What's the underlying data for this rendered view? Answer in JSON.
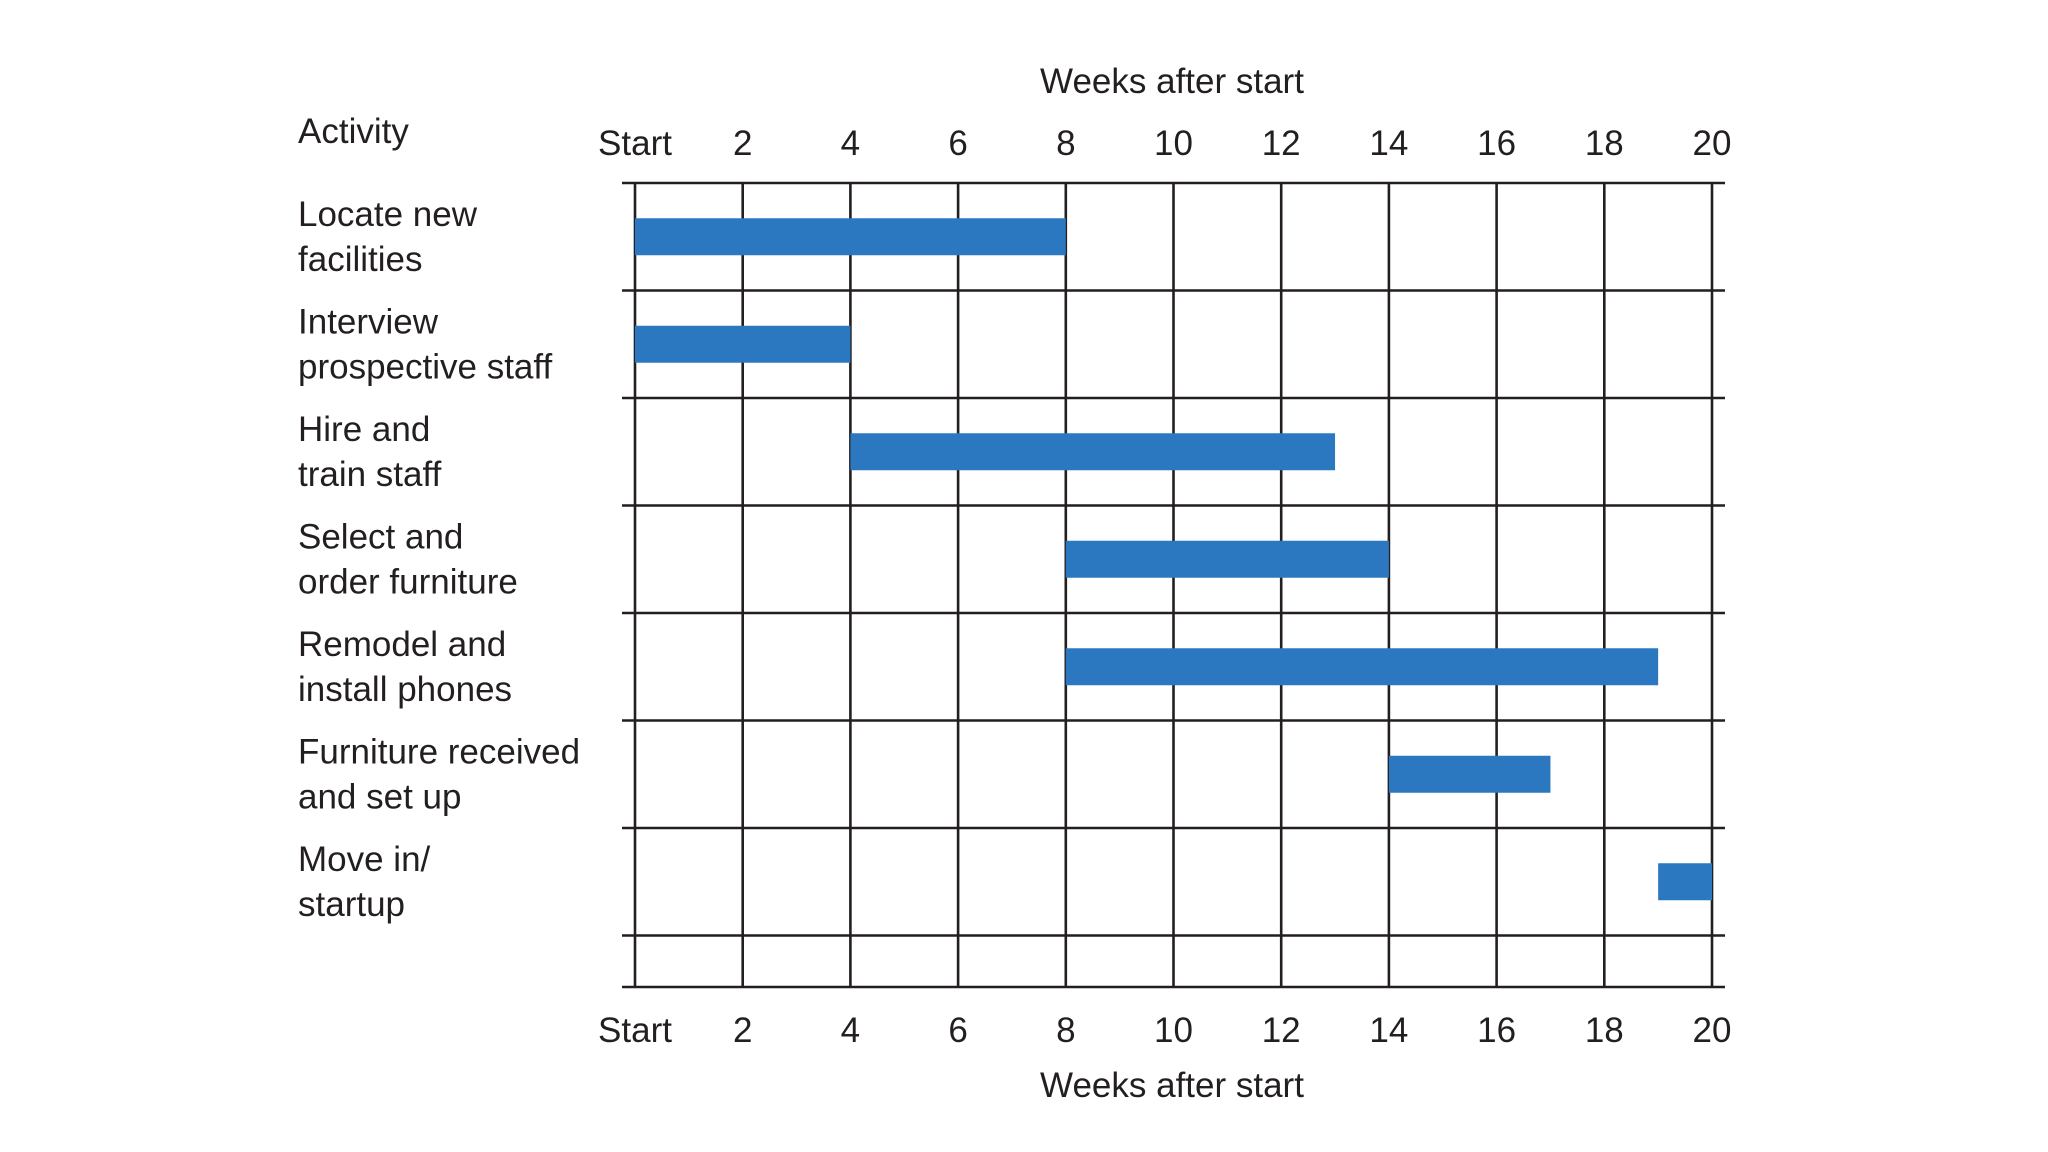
{
  "chart_data": {
    "type": "gantt",
    "x_axis_title": "Weeks after start",
    "row_header": "Activity",
    "x_range": [
      0,
      20
    ],
    "ticks": [
      {
        "value": 0,
        "label": "Start"
      },
      {
        "value": 2,
        "label": "2"
      },
      {
        "value": 4,
        "label": "4"
      },
      {
        "value": 6,
        "label": "6"
      },
      {
        "value": 8,
        "label": "8"
      },
      {
        "value": 10,
        "label": "10"
      },
      {
        "value": 12,
        "label": "12"
      },
      {
        "value": 14,
        "label": "14"
      },
      {
        "value": 16,
        "label": "16"
      },
      {
        "value": 18,
        "label": "18"
      },
      {
        "value": 20,
        "label": "20"
      }
    ],
    "activities": [
      {
        "lines": [
          "Locate new",
          "facilities"
        ],
        "start": 0,
        "end": 8
      },
      {
        "lines": [
          "Interview",
          "prospective staff"
        ],
        "start": 0,
        "end": 4
      },
      {
        "lines": [
          "Hire and",
          "train staff"
        ],
        "start": 4,
        "end": 13
      },
      {
        "lines": [
          "Select and",
          "order furniture"
        ],
        "start": 8,
        "end": 14
      },
      {
        "lines": [
          "Remodel and",
          "install phones"
        ],
        "start": 8,
        "end": 19
      },
      {
        "lines": [
          "Furniture received",
          "and set up"
        ],
        "start": 14,
        "end": 17
      },
      {
        "lines": [
          "Move in/",
          "startup"
        ],
        "start": 19,
        "end": 20
      }
    ],
    "bar_color": "#2b78c0",
    "grid": true
  }
}
